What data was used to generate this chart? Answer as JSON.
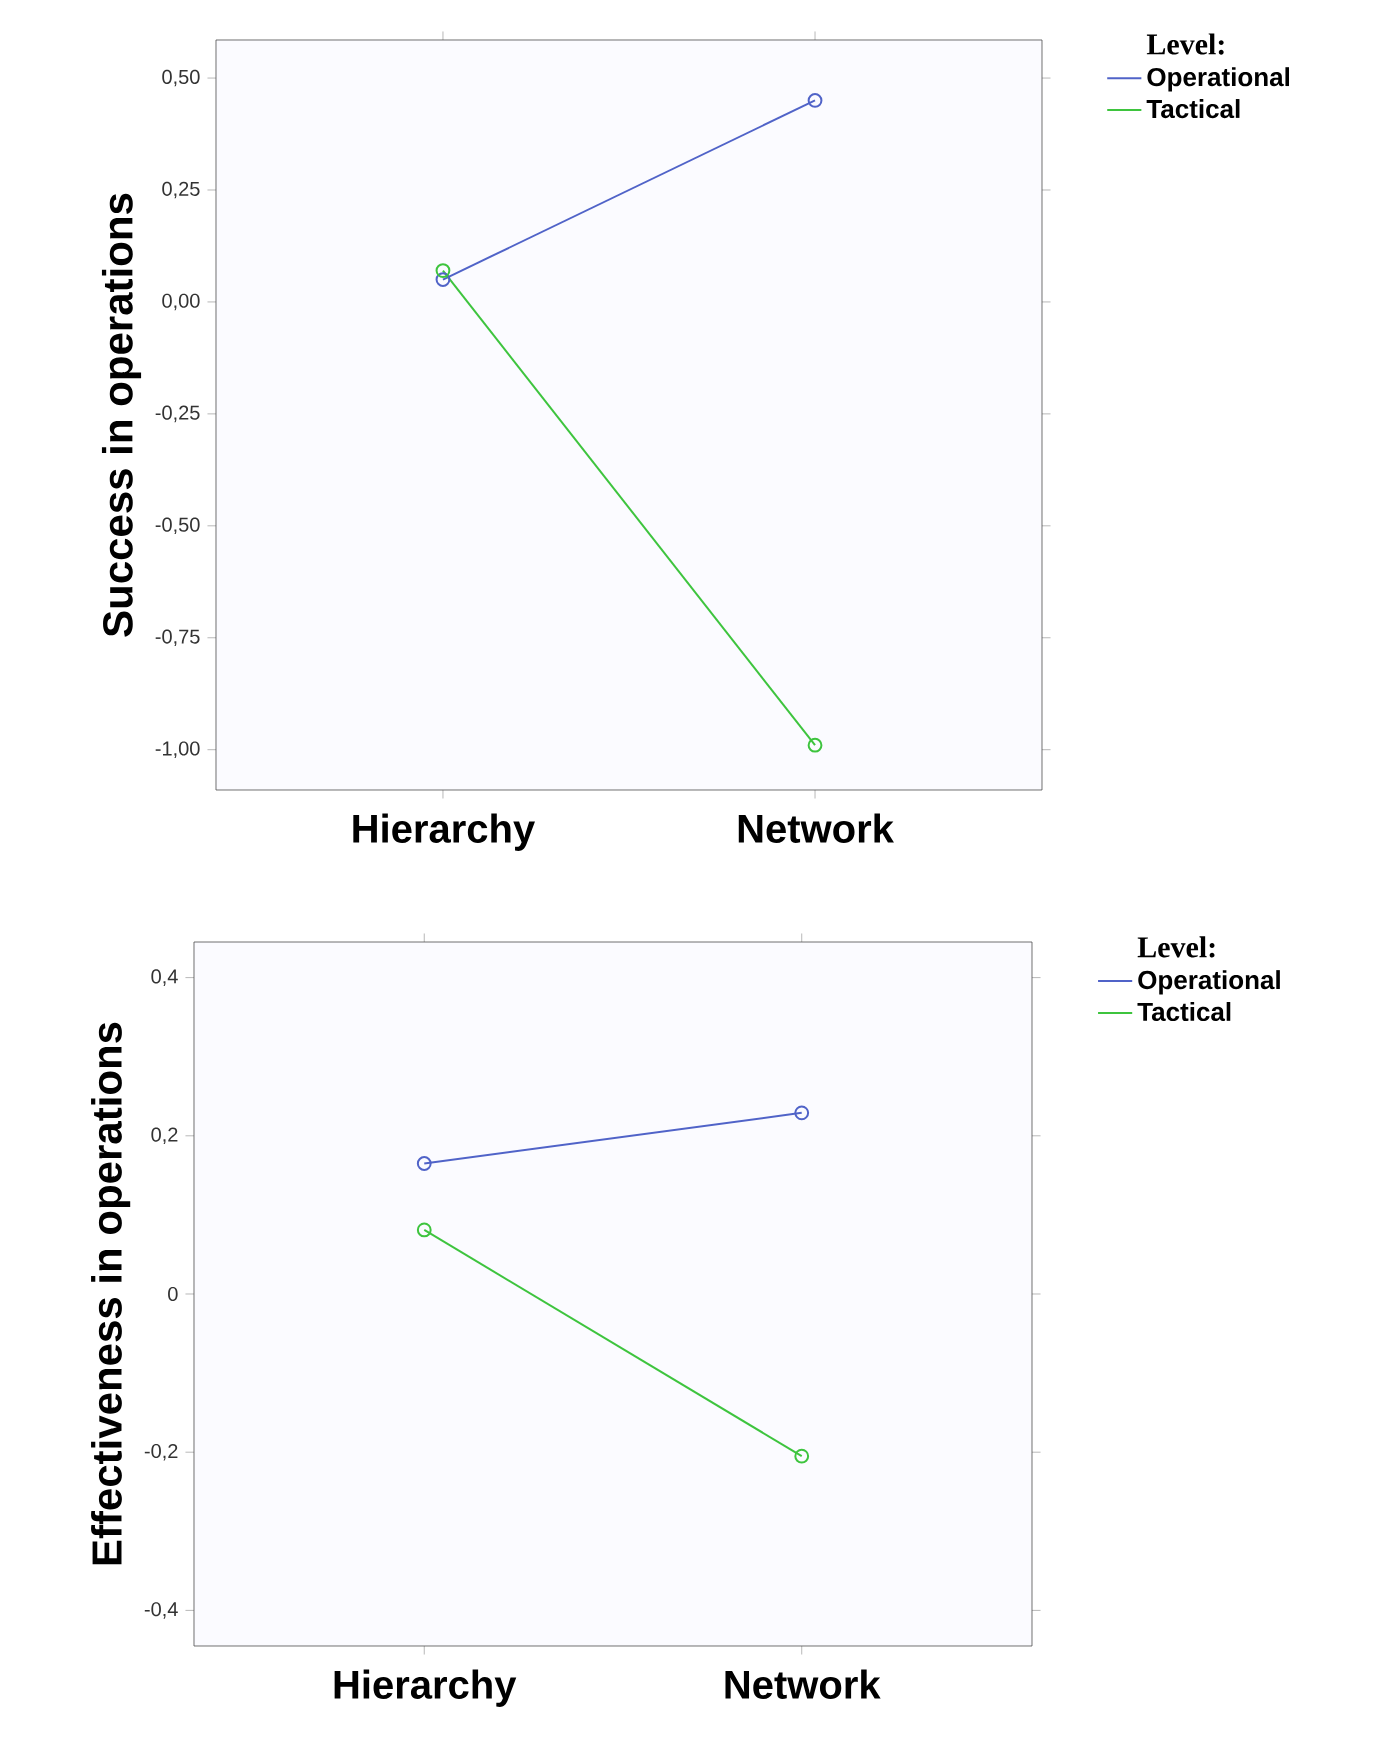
{
  "chart_data": [
    {
      "type": "line",
      "ylabel": "Success in operations",
      "legend_title": "Level:",
      "categories": [
        "Hierarchy",
        "Network"
      ],
      "series": [
        {
          "name": "Operational",
          "color": "#5063c8",
          "values": [
            0.05,
            0.45
          ]
        },
        {
          "name": "Tactical",
          "color": "#3ec43e",
          "values": [
            0.07,
            -0.99
          ]
        }
      ],
      "ylim": [
        -1.09,
        0.585
      ],
      "yticks": [
        {
          "value": 0.5,
          "label": "0,50"
        },
        {
          "value": 0.25,
          "label": "0,25"
        },
        {
          "value": 0,
          "label": "0,00"
        },
        {
          "value": -0.25,
          "label": "-0,25"
        },
        {
          "value": -0.5,
          "label": "-0,50"
        },
        {
          "value": -0.75,
          "label": "-0,75"
        },
        {
          "value": -1,
          "label": "-1,00"
        }
      ],
      "grid": false,
      "legend": "top right",
      "marker": "circle",
      "line_style": "solid"
    },
    {
      "type": "line",
      "ylabel": "Effectiveness in operations",
      "legend_title": "Level:",
      "categories": [
        "Hierarchy",
        "Network"
      ],
      "series": [
        {
          "name": "Operational",
          "color": "#5063c8",
          "values": [
            0.165,
            0.229
          ]
        },
        {
          "name": "Tactical",
          "color": "#3ec43e",
          "values": [
            0.081,
            -0.205
          ]
        }
      ],
      "ylim": [
        -0.445,
        0.445
      ],
      "yticks": [
        {
          "value": 0.4,
          "label": "0,4"
        },
        {
          "value": 0.2,
          "label": "0,2"
        },
        0,
        {
          "value": -0.2,
          "label": "-0,2"
        },
        {
          "value": -0.4,
          "label": "-0,4"
        }
      ],
      "grid": false,
      "legend": "top right",
      "marker": "circle",
      "line_style": "solid"
    }
  ]
}
